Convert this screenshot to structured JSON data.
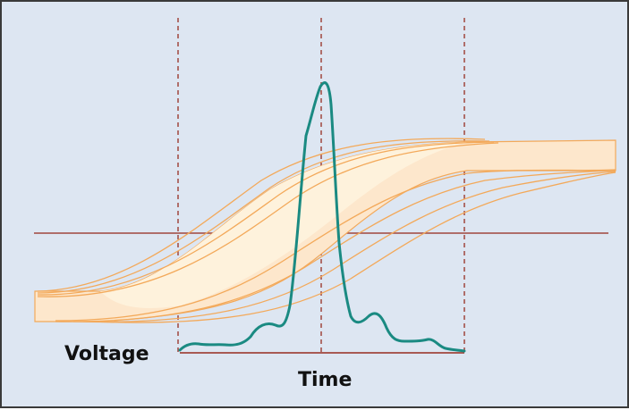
{
  "labels": {
    "voltage": "Voltage",
    "time": "Time"
  },
  "colors": {
    "background": "#dde6f2",
    "border": "#3a3a3a",
    "reference_lines": "#a0463c",
    "band_fill": "#fde7cc",
    "band_inner_fill": "#fef2dc",
    "transition_curves": "#f3a95a",
    "current_pulse": "#1a8a82"
  }
}
